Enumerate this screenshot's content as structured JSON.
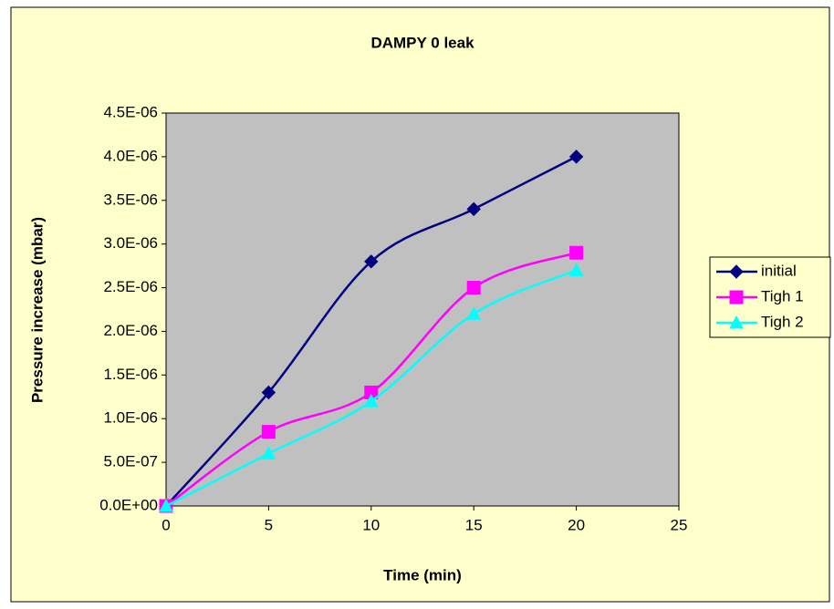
{
  "chart_data": {
    "type": "line",
    "title": "DAMPY 0 leak",
    "xlabel": "Time (min)",
    "ylabel": "Pressure increase (mbar)",
    "xlim": [
      0,
      25
    ],
    "xticks": [
      0,
      5,
      10,
      15,
      20,
      25
    ],
    "ylim": [
      0,
      4.5e-06
    ],
    "yticks": [
      {
        "value": 0,
        "label": "0.0E+00"
      },
      {
        "value": 5e-07,
        "label": "5.0E-07"
      },
      {
        "value": 1e-06,
        "label": "1.0E-06"
      },
      {
        "value": 1.5e-06,
        "label": "1.5E-06"
      },
      {
        "value": 2e-06,
        "label": "2.0E-06"
      },
      {
        "value": 2.5e-06,
        "label": "2.5E-06"
      },
      {
        "value": 3e-06,
        "label": "3.0E-06"
      },
      {
        "value": 3.5e-06,
        "label": "3.5E-06"
      },
      {
        "value": 4e-06,
        "label": "4.0E-06"
      },
      {
        "value": 4.5e-06,
        "label": "4.5E-06"
      }
    ],
    "x": [
      0,
      5,
      10,
      15,
      20
    ],
    "series": [
      {
        "name": "initial",
        "color": "#000080",
        "marker": "diamond",
        "values": [
          0,
          1.3e-06,
          2.8e-06,
          3.4e-06,
          4e-06
        ]
      },
      {
        "name": "Tigh 1",
        "color": "#ff00ff",
        "marker": "square",
        "values": [
          0,
          8.5e-07,
          1.3e-06,
          2.5e-06,
          2.9e-06
        ]
      },
      {
        "name": "Tigh 2",
        "color": "#00ffff",
        "marker": "triangle",
        "values": [
          0,
          6e-07,
          1.2e-06,
          2.2e-06,
          2.7e-06
        ]
      }
    ],
    "grid": false,
    "smooth": true,
    "legend": "right"
  }
}
